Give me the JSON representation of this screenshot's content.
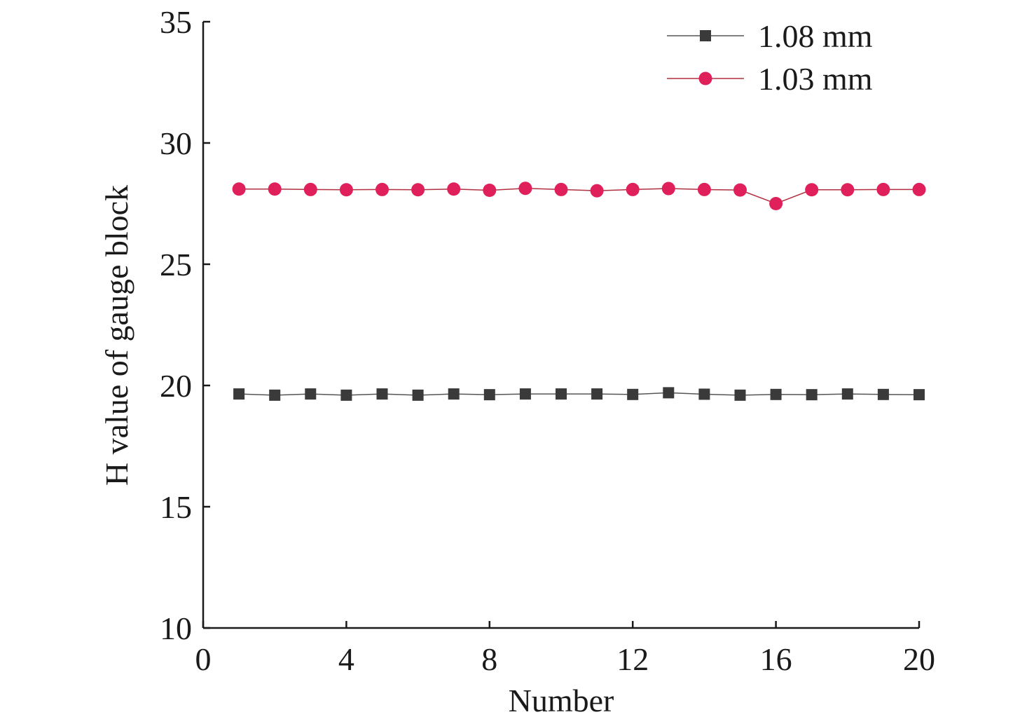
{
  "chart_data": {
    "type": "line",
    "title": "",
    "xlabel": "Number",
    "ylabel": "H value of gauge block",
    "xlim": [
      0,
      20
    ],
    "ylim": [
      10,
      35
    ],
    "xticks": [
      0,
      4,
      8,
      12,
      16,
      20
    ],
    "xtick_labels": [
      "0",
      "4",
      "8",
      "12",
      "16",
      "20"
    ],
    "yticks": [
      10,
      15,
      20,
      25,
      30,
      35
    ],
    "ytick_labels": [
      "10",
      "15",
      "20",
      "25",
      "30",
      "35"
    ],
    "grid": false,
    "legend_position": "top-right",
    "x": [
      1,
      2,
      3,
      4,
      5,
      6,
      7,
      8,
      9,
      10,
      11,
      12,
      13,
      14,
      15,
      16,
      17,
      18,
      19,
      20
    ],
    "series": [
      {
        "name": "1.08 mm",
        "marker": "square",
        "color": "#3a3a3a",
        "line_color": "#555555",
        "values": [
          19.65,
          19.6,
          19.65,
          19.6,
          19.65,
          19.6,
          19.65,
          19.62,
          19.65,
          19.65,
          19.65,
          19.63,
          19.7,
          19.64,
          19.6,
          19.63,
          19.62,
          19.65,
          19.63,
          19.62
        ]
      },
      {
        "name": "1.03 mm",
        "marker": "circle",
        "color": "#e0205a",
        "line_color": "#b03040",
        "values": [
          28.1,
          28.1,
          28.08,
          28.07,
          28.08,
          28.07,
          28.1,
          28.05,
          28.13,
          28.08,
          28.03,
          28.08,
          28.12,
          28.08,
          28.06,
          27.5,
          28.07,
          28.07,
          28.08,
          28.08
        ]
      }
    ]
  }
}
